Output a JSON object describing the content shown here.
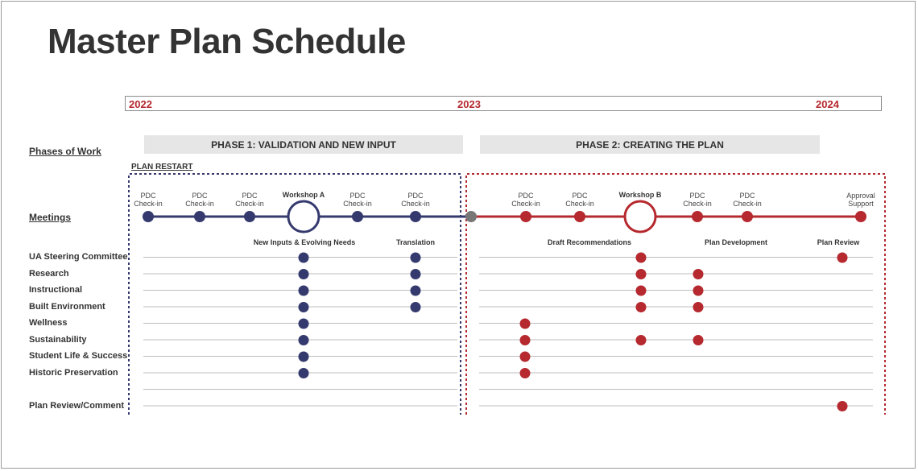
{
  "title": "Master Plan Schedule",
  "years": [
    "2022",
    "2023",
    "2024"
  ],
  "phases": {
    "phase1": "PHASE 1: VALIDATION AND NEW INPUT",
    "phase2": "PHASE 2: CREATING THE PLAN"
  },
  "section_labels": {
    "phases_of_work": "Phases of Work",
    "meetings": "Meetings"
  },
  "plan_restart": "PLAN RESTART",
  "meetings": [
    {
      "label_1": "PDC",
      "label_2": "Check-in",
      "type": "checkin",
      "phase": 1
    },
    {
      "label_1": "PDC",
      "label_2": "Check-in",
      "type": "checkin",
      "phase": 1
    },
    {
      "label_1": "PDC",
      "label_2": "Check-in",
      "type": "checkin",
      "phase": 1
    },
    {
      "label_1": "Workshop A",
      "label_2": "",
      "type": "workshop",
      "phase": 1
    },
    {
      "label_1": "PDC",
      "label_2": "Check-in",
      "type": "checkin",
      "phase": 1
    },
    {
      "label_1": "PDC",
      "label_2": "Check-in",
      "type": "checkin",
      "phase": 1
    },
    {
      "label_1": "PDC",
      "label_2": "Check-in",
      "type": "checkin",
      "phase": 2
    },
    {
      "label_1": "PDC",
      "label_2": "Check-in",
      "type": "checkin",
      "phase": 2
    },
    {
      "label_1": "Workshop B",
      "label_2": "",
      "type": "workshop",
      "phase": 2
    },
    {
      "label_1": "PDC",
      "label_2": "Check-in",
      "type": "checkin",
      "phase": 2
    },
    {
      "label_1": "PDC",
      "label_2": "Check-in",
      "type": "checkin",
      "phase": 2
    },
    {
      "label_1": "Approval",
      "label_2": "Support",
      "type": "checkin",
      "phase": 2
    }
  ],
  "stages": [
    "New Inputs & Evolving Needs",
    "Translation",
    "Draft Recommendations",
    "Plan Development",
    "Plan Review"
  ],
  "groups": [
    {
      "name": "UA Steering Committee",
      "stages": [
        "New Inputs & Evolving Needs",
        "Translation",
        "Draft Recommendations",
        "Plan Review"
      ]
    },
    {
      "name": "Research",
      "stages": [
        "New Inputs & Evolving Needs",
        "Translation",
        "Draft Recommendations",
        "Plan Development"
      ]
    },
    {
      "name": "Instructional",
      "stages": [
        "New Inputs & Evolving Needs",
        "Translation",
        "Draft Recommendations",
        "Plan Development"
      ]
    },
    {
      "name": "Built Environment",
      "stages": [
        "New Inputs & Evolving Needs",
        "Translation",
        "Draft Recommendations",
        "Plan Development"
      ]
    },
    {
      "name": "Wellness",
      "stages": [
        "New Inputs & Evolving Needs",
        "PDC Check-in"
      ]
    },
    {
      "name": "Sustainability",
      "stages": [
        "New Inputs & Evolving Needs",
        "PDC Check-in",
        "Draft Recommendations",
        "Plan Development"
      ]
    },
    {
      "name": "Student Life & Success",
      "stages": [
        "New Inputs & Evolving Needs",
        "PDC Check-in"
      ]
    },
    {
      "name": "Historic Preservation",
      "stages": [
        "New Inputs & Evolving Needs",
        "PDC Check-in"
      ]
    },
    {
      "name": "",
      "stages": []
    },
    {
      "name": "Plan Review/Comment",
      "stages": [
        "Plan Review"
      ]
    }
  ],
  "colors": {
    "phase1": "#353a6e",
    "phase2": "#b5292f",
    "transition": "#777777",
    "year": "#b5292f",
    "row_line": "#bdbdbd"
  }
}
